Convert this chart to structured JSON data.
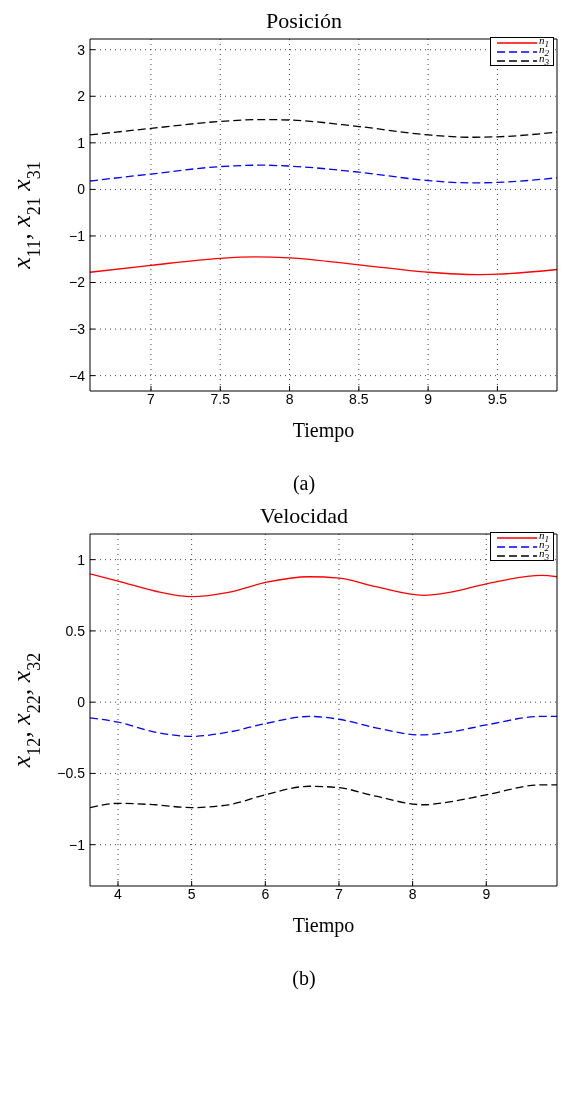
{
  "chart_data": [
    {
      "type": "line",
      "title": "Posición",
      "xlabel": "Tiempo",
      "ylabel": "x$_{11}$, x$_{21}$ x$_{31}$",
      "annotations": [
        "(a)"
      ],
      "xlim": [
        6.56,
        9.93
      ],
      "xticks": [
        7,
        7.5,
        8,
        8.5,
        9,
        9.5
      ],
      "ylim": [
        -4.33,
        3.23
      ],
      "yticks": [
        -4,
        -3,
        -2,
        -1,
        0,
        1,
        2,
        3
      ],
      "grid": true,
      "legend": "top right",
      "series": [
        {
          "name": "n$_{1}$",
          "color": "#ff0000",
          "line_style": "solid",
          "x": [
            6.56,
            7,
            7.5,
            7.75,
            8,
            8.5,
            9,
            9.35,
            9.5,
            9.93
          ],
          "values": [
            -1.78,
            -1.63,
            -1.48,
            -1.45,
            -1.47,
            -1.62,
            -1.78,
            -1.83,
            -1.82,
            -1.72
          ]
        },
        {
          "name": "n$_{2}$",
          "color": "#0000ff",
          "line_style": "dashed",
          "x": [
            6.56,
            7,
            7.5,
            7.8,
            8,
            8.5,
            9,
            9.3,
            9.5,
            9.93
          ],
          "values": [
            0.18,
            0.33,
            0.49,
            0.52,
            0.5,
            0.37,
            0.19,
            0.14,
            0.15,
            0.25
          ]
        },
        {
          "name": "n$_{3}$",
          "color": "#000000",
          "line_style": "dashed",
          "x": [
            6.56,
            7,
            7.5,
            7.8,
            8,
            8.5,
            9,
            9.3,
            9.5,
            9.93
          ],
          "values": [
            1.17,
            1.31,
            1.46,
            1.5,
            1.49,
            1.35,
            1.17,
            1.12,
            1.13,
            1.23
          ]
        }
      ]
    },
    {
      "type": "line",
      "title": "Velocidad",
      "xlabel": "Tiempo",
      "ylabel": "x$_{12}$, x$_{22}$, x$_{32}$",
      "annotations": [
        "(b)"
      ],
      "xlim": [
        3.62,
        9.96
      ],
      "xticks": [
        4,
        5,
        6,
        7,
        8,
        9
      ],
      "ylim": [
        -1.29,
        1.18
      ],
      "yticks": [
        -1,
        -0.5,
        0,
        0.5,
        1
      ],
      "grid": true,
      "legend": "top right",
      "series": [
        {
          "name": "n$_{1}$",
          "color": "#ff0000",
          "line_style": "solid",
          "x": [
            3.62,
            4,
            4.5,
            5,
            5.5,
            6,
            6.6,
            7,
            7.5,
            8.15,
            8.5,
            9,
            9.75,
            9.96
          ],
          "values": [
            0.9,
            0.85,
            0.78,
            0.74,
            0.77,
            0.84,
            0.88,
            0.87,
            0.81,
            0.75,
            0.77,
            0.83,
            0.89,
            0.88
          ]
        },
        {
          "name": "n$_{2}$",
          "color": "#0000ff",
          "line_style": "dashed",
          "x": [
            3.62,
            4,
            4.5,
            5,
            5.5,
            6,
            6.6,
            7,
            7.5,
            8.1,
            8.5,
            9,
            9.75,
            9.96
          ],
          "values": [
            -0.11,
            -0.14,
            -0.21,
            -0.24,
            -0.21,
            -0.15,
            -0.1,
            -0.12,
            -0.18,
            -0.23,
            -0.21,
            -0.16,
            -0.1,
            -0.1
          ]
        },
        {
          "name": "n$_{3}$",
          "color": "#000000",
          "line_style": "dashed",
          "x": [
            3.62,
            4,
            4.5,
            5,
            5.5,
            6,
            6.6,
            7,
            7.5,
            8.15,
            8.5,
            9,
            9.75,
            9.96
          ],
          "values": [
            -0.74,
            -0.71,
            -0.72,
            -0.74,
            -0.72,
            -0.65,
            -0.59,
            -0.6,
            -0.66,
            -0.72,
            -0.7,
            -0.65,
            -0.58,
            -0.58
          ]
        }
      ]
    }
  ]
}
